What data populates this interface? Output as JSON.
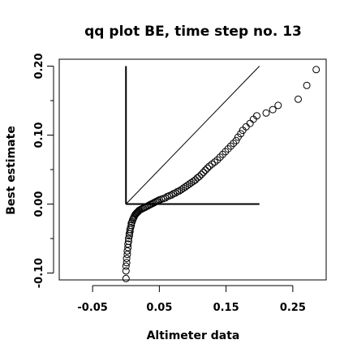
{
  "chart_data": {
    "type": "scatter",
    "title": "qq plot BE, time step no. 13",
    "xlabel": "Altimeter data",
    "ylabel": "Best estimate",
    "xlim": [
      -0.1,
      0.3
    ],
    "ylim": [
      -0.11,
      0.21
    ],
    "xticks": [
      -0.05,
      0.05,
      0.15,
      0.25
    ],
    "xtick_labels": [
      "-0.05",
      "0.05",
      "0.15",
      "0.25"
    ],
    "yticks": [
      -0.1,
      0.0,
      0.1,
      0.2
    ],
    "ytick_labels": [
      "-0.10",
      "0.00",
      "0.10",
      "0.20"
    ],
    "grid": false,
    "legend": "none",
    "marker": "open-circle",
    "reference_lines": [
      {
        "kind": "diagonal",
        "x": [
          0.0,
          0.2
        ],
        "y": [
          0.0,
          0.2
        ]
      },
      {
        "kind": "vertical",
        "x": [
          0.0,
          0.0
        ],
        "y": [
          0.0,
          0.2
        ]
      },
      {
        "kind": "horizontal",
        "x": [
          0.0,
          0.2
        ],
        "y": [
          0.0,
          0.0
        ]
      }
    ],
    "points": [
      [
        0.0,
        -0.108
      ],
      [
        0.0,
        -0.097
      ],
      [
        0.0,
        -0.09
      ],
      [
        0.001,
        -0.085
      ],
      [
        0.001,
        -0.079
      ],
      [
        0.002,
        -0.073
      ],
      [
        0.002,
        -0.068
      ],
      [
        0.003,
        -0.063
      ],
      [
        0.003,
        -0.058
      ],
      [
        0.004,
        -0.054
      ],
      [
        0.004,
        -0.05
      ],
      [
        0.005,
        -0.046
      ],
      [
        0.005,
        -0.043
      ],
      [
        0.006,
        -0.04
      ],
      [
        0.006,
        -0.037
      ],
      [
        0.007,
        -0.034
      ],
      [
        0.008,
        -0.031
      ],
      [
        0.008,
        -0.028
      ],
      [
        0.009,
        -0.026
      ],
      [
        0.01,
        -0.023
      ],
      [
        0.011,
        -0.021
      ],
      [
        0.012,
        -0.019
      ],
      [
        0.013,
        -0.017
      ],
      [
        0.014,
        -0.015
      ],
      [
        0.015,
        -0.014
      ],
      [
        0.016,
        -0.013
      ],
      [
        0.017,
        -0.012
      ],
      [
        0.018,
        -0.011
      ],
      [
        0.019,
        -0.01
      ],
      [
        0.02,
        -0.009
      ],
      [
        0.022,
        -0.008
      ],
      [
        0.024,
        -0.007
      ],
      [
        0.026,
        -0.006
      ],
      [
        0.028,
        -0.005
      ],
      [
        0.03,
        -0.004
      ],
      [
        0.032,
        -0.003
      ],
      [
        0.034,
        -0.002
      ],
      [
        0.036,
        -0.001
      ],
      [
        0.038,
        0.0
      ],
      [
        0.04,
        0.001
      ],
      [
        0.042,
        0.002
      ],
      [
        0.044,
        0.003
      ],
      [
        0.046,
        0.004
      ],
      [
        0.048,
        0.005
      ],
      [
        0.05,
        0.006
      ],
      [
        0.053,
        0.007
      ],
      [
        0.056,
        0.008
      ],
      [
        0.059,
        0.009
      ],
      [
        0.062,
        0.011
      ],
      [
        0.065,
        0.012
      ],
      [
        0.068,
        0.013
      ],
      [
        0.071,
        0.015
      ],
      [
        0.074,
        0.016
      ],
      [
        0.077,
        0.018
      ],
      [
        0.08,
        0.019
      ],
      [
        0.083,
        0.021
      ],
      [
        0.086,
        0.023
      ],
      [
        0.089,
        0.025
      ],
      [
        0.092,
        0.027
      ],
      [
        0.095,
        0.029
      ],
      [
        0.098,
        0.031
      ],
      [
        0.101,
        0.033
      ],
      [
        0.104,
        0.035
      ],
      [
        0.107,
        0.038
      ],
      [
        0.11,
        0.04
      ],
      [
        0.113,
        0.043
      ],
      [
        0.116,
        0.046
      ],
      [
        0.119,
        0.049
      ],
      [
        0.122,
        0.052
      ],
      [
        0.125,
        0.055
      ],
      [
        0.129,
        0.058
      ],
      [
        0.133,
        0.061
      ],
      [
        0.137,
        0.064
      ],
      [
        0.141,
        0.068
      ],
      [
        0.145,
        0.072
      ],
      [
        0.149,
        0.076
      ],
      [
        0.153,
        0.08
      ],
      [
        0.157,
        0.084
      ],
      [
        0.161,
        0.088
      ],
      [
        0.165,
        0.092
      ],
      [
        0.168,
        0.097
      ],
      [
        0.172,
        0.102
      ],
      [
        0.175,
        0.107
      ],
      [
        0.18,
        0.112
      ],
      [
        0.186,
        0.117
      ],
      [
        0.191,
        0.123
      ],
      [
        0.196,
        0.128
      ],
      [
        0.21,
        0.132
      ],
      [
        0.22,
        0.137
      ],
      [
        0.228,
        0.143
      ],
      [
        0.258,
        0.152
      ],
      [
        0.271,
        0.172
      ],
      [
        0.285,
        0.195
      ]
    ]
  }
}
